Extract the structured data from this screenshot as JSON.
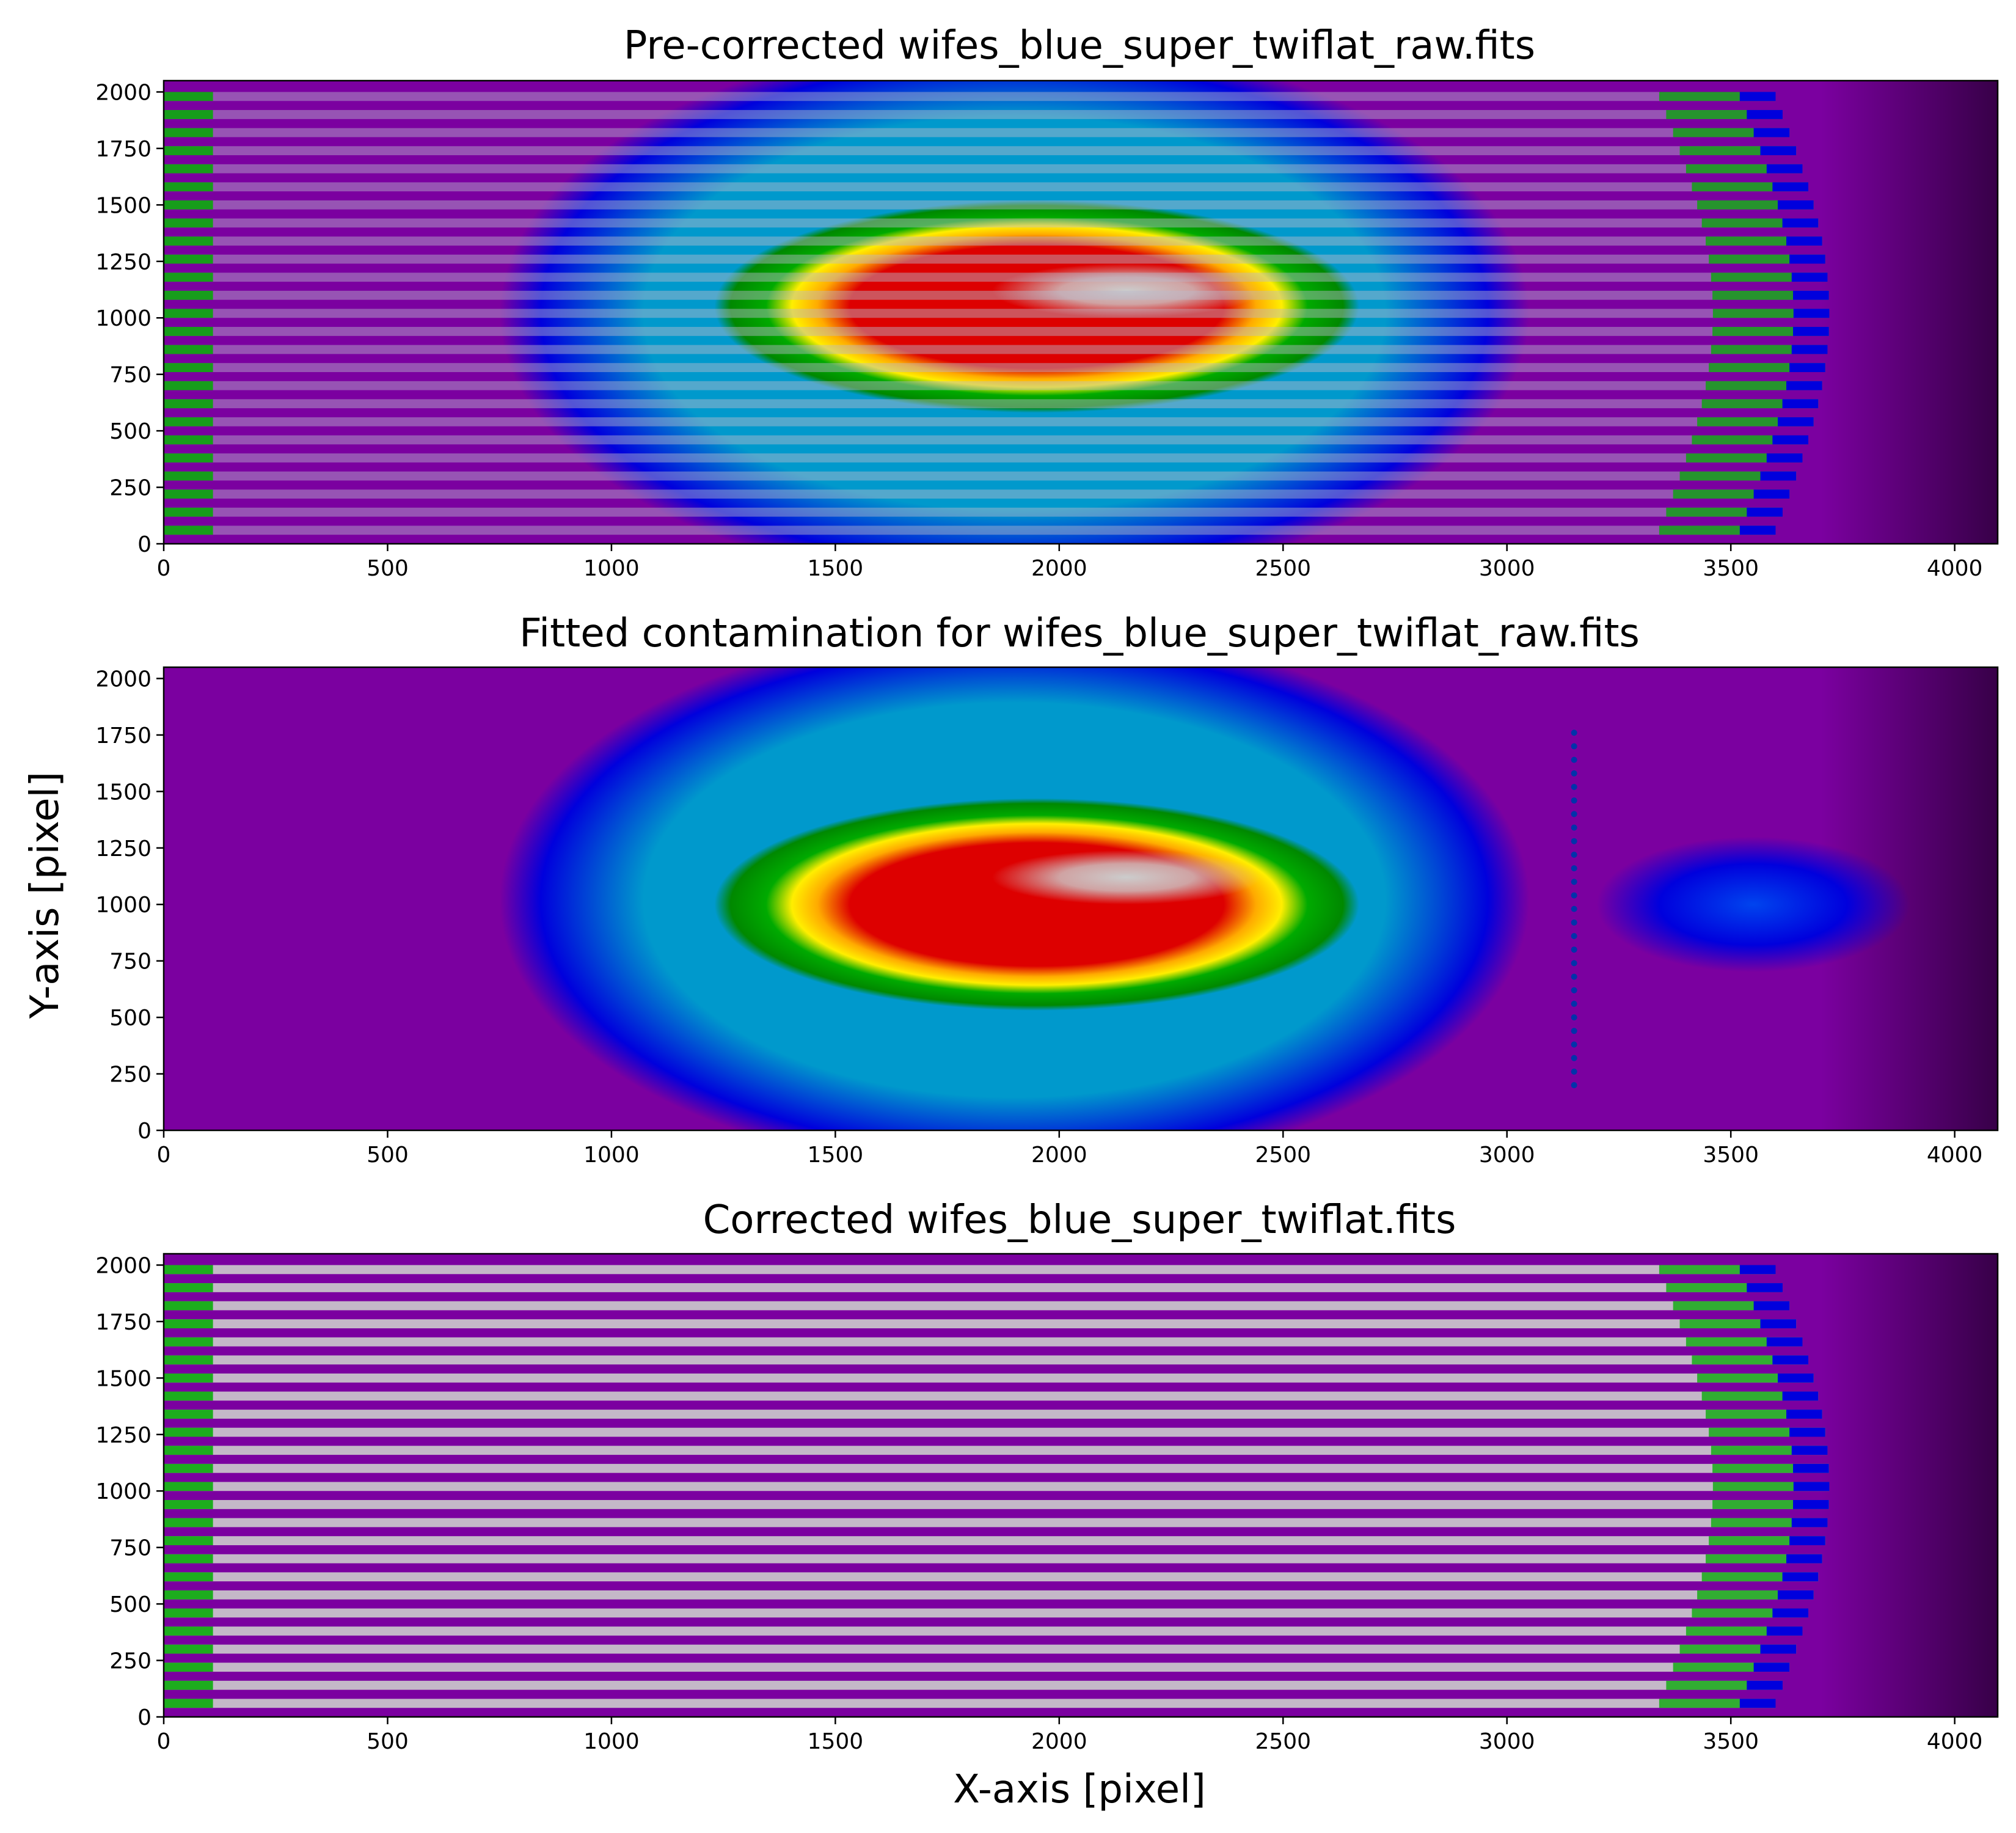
{
  "chart_data": [
    {
      "type": "heatmap",
      "title": "Pre-corrected wifes_blue_super_twiflat_raw.fits",
      "pattern": "slitlets",
      "xlim": [
        0,
        4096
      ],
      "ylim": [
        0,
        2050
      ],
      "xticks": [
        0,
        500,
        1000,
        1500,
        2000,
        2500,
        3000,
        3500,
        4000
      ],
      "yticks": [
        0,
        250,
        500,
        750,
        1000,
        1250,
        1500,
        1750,
        2000
      ],
      "slitlet_count": 25,
      "background": "gradient with central red/white maximum near (1950, 1050)"
    },
    {
      "type": "heatmap",
      "title": "Fitted contamination for wifes_blue_super_twiflat_raw.fits",
      "pattern": "smooth",
      "xlim": [
        0,
        4096
      ],
      "ylim": [
        0,
        2050
      ],
      "xticks": [
        0,
        500,
        1000,
        1500,
        2000,
        2500,
        3000,
        3500,
        4000
      ],
      "yticks": [
        0,
        250,
        500,
        750,
        1000,
        1250,
        1500,
        1750,
        2000
      ],
      "peak_center": [
        1950,
        1000
      ],
      "background": "smooth elliptical blob: red core, yellow/green rings, blue surround"
    },
    {
      "type": "heatmap",
      "title": "Corrected wifes_blue_super_twiflat.fits",
      "pattern": "slitlets-flat",
      "xlim": [
        0,
        4096
      ],
      "ylim": [
        0,
        2050
      ],
      "xticks": [
        0,
        500,
        1000,
        1500,
        2000,
        2500,
        3000,
        3500,
        4000
      ],
      "yticks": [
        0,
        250,
        500,
        750,
        1000,
        1250,
        1500,
        1750,
        2000
      ],
      "slitlet_count": 25,
      "background": "flat purple"
    }
  ],
  "xlabel": "X-axis [pixel]",
  "ylabel": "Y-axis [pixel]",
  "colormap": "nipy_spectral",
  "colors": {
    "black": "#000000",
    "purple": "#7b00a0",
    "blue": "#0000dd",
    "cyan": "#0099cc",
    "green": "#00aa00",
    "yellow": "#ffee00",
    "red": "#dd0000",
    "white": "#cccccc"
  }
}
